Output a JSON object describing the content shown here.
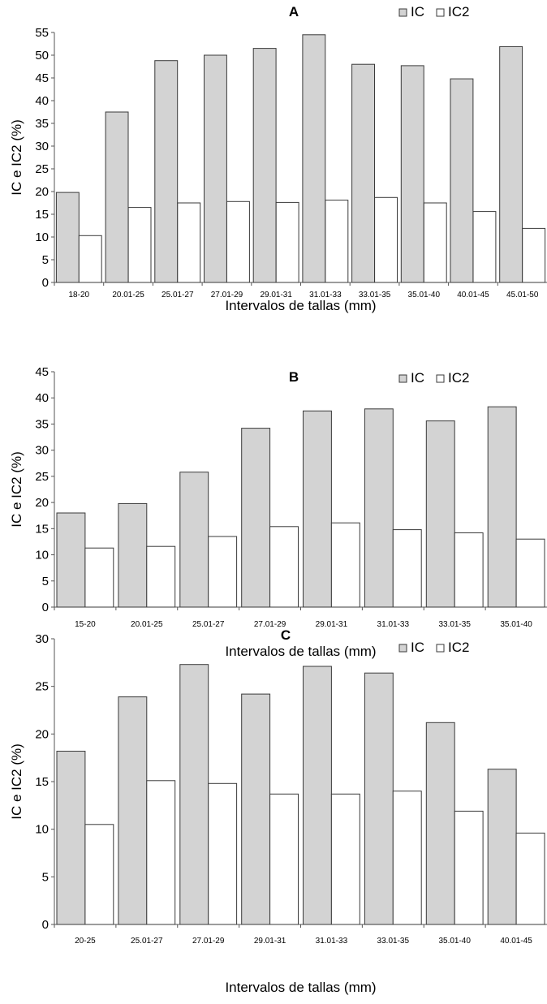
{
  "colors": {
    "ic_fill": "#d3d3d3",
    "ic2_fill": "#ffffff",
    "bar_stroke": "#3a3a3a",
    "axis": "#555555"
  },
  "chart_data": [
    {
      "type": "bar",
      "title": "A",
      "xlabel": "Intervalos de tallas (mm)",
      "ylabel": "IC e IC2 (%)",
      "ylim": [
        0,
        55
      ],
      "yticks": [
        0,
        5,
        10,
        15,
        20,
        25,
        30,
        35,
        40,
        45,
        50,
        55
      ],
      "legend_position": "top-right",
      "categories": [
        "18-20",
        "20.01-25",
        "25.01-27",
        "27.01-29",
        "29.01-31",
        "31.01-33",
        "33.01-35",
        "35.01-40",
        "40.01-45",
        "45.01-50"
      ],
      "series": [
        {
          "name": "IC",
          "values": [
            19.8,
            37.5,
            48.8,
            50.0,
            51.5,
            54.5,
            48.0,
            47.7,
            44.8,
            51.9
          ]
        },
        {
          "name": "IC2",
          "values": [
            10.3,
            16.5,
            17.5,
            17.8,
            17.6,
            18.1,
            18.7,
            17.5,
            15.6,
            11.9
          ]
        }
      ]
    },
    {
      "type": "bar",
      "title": "B",
      "xlabel": "Intervalos de tallas (mm)",
      "ylabel": "IC e IC2 (%)",
      "ylim": [
        0,
        45
      ],
      "yticks": [
        0,
        5,
        10,
        15,
        20,
        25,
        30,
        35,
        40,
        45
      ],
      "legend_position": "top-right",
      "categories": [
        "15-20",
        "20.01-25",
        "25.01-27",
        "27.01-29",
        "29.01-31",
        "31.01-33",
        "33.01-35",
        "35.01-40"
      ],
      "series": [
        {
          "name": "IC",
          "values": [
            18.0,
            19.8,
            25.8,
            34.2,
            37.5,
            37.9,
            35.6,
            38.3
          ]
        },
        {
          "name": "IC2",
          "values": [
            11.3,
            11.6,
            13.5,
            15.4,
            16.1,
            14.8,
            14.2,
            13.0
          ]
        }
      ]
    },
    {
      "type": "bar",
      "title": "C",
      "xlabel": "Intervalos de tallas (mm)",
      "ylabel": "IC e IC2 (%)",
      "ylim": [
        0,
        30
      ],
      "yticks": [
        0,
        5,
        10,
        15,
        20,
        25,
        30
      ],
      "legend_position": "top-right",
      "categories": [
        "20-25",
        "25.01-27",
        "27.01-29",
        "29.01-31",
        "31.01-33",
        "33.01-35",
        "35.01-40",
        "40.01-45"
      ],
      "series": [
        {
          "name": "IC",
          "values": [
            18.2,
            23.9,
            27.3,
            24.2,
            27.1,
            26.4,
            21.2,
            16.3
          ]
        },
        {
          "name": "IC2",
          "values": [
            10.5,
            15.1,
            14.8,
            13.7,
            13.7,
            14.0,
            11.9,
            9.6
          ]
        }
      ]
    }
  ]
}
